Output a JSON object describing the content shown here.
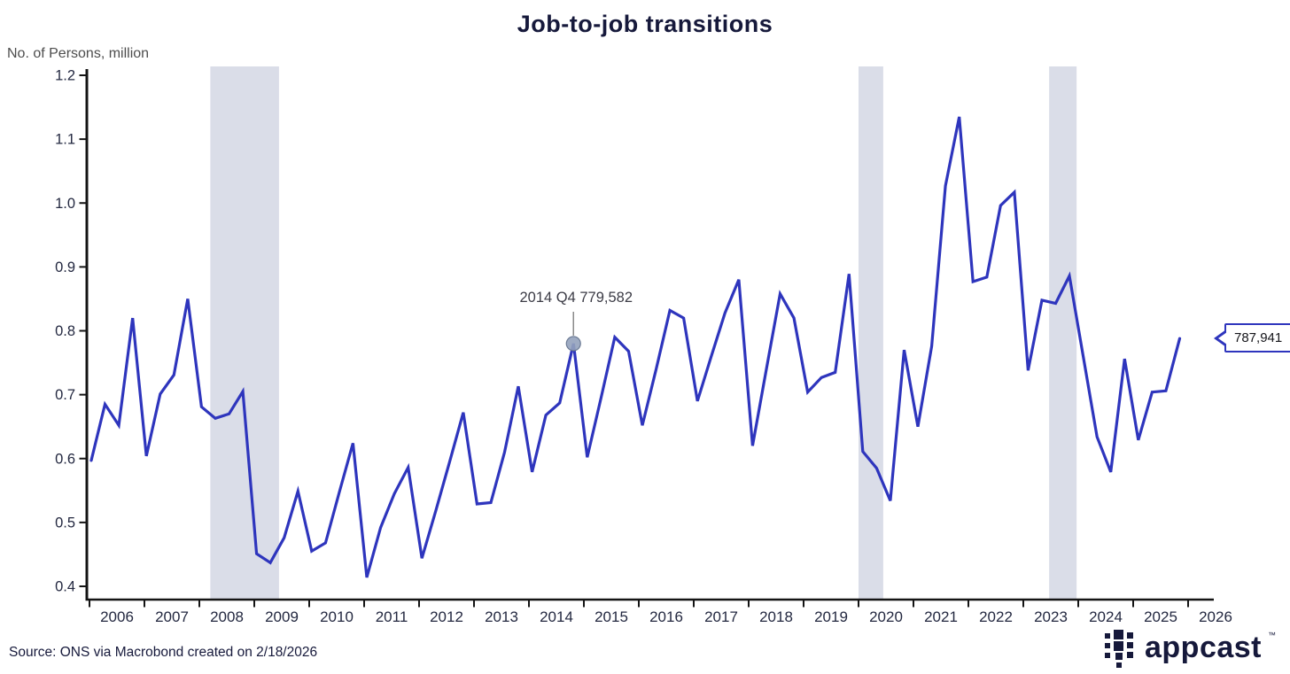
{
  "title": "Job-to-job transitions",
  "y_axis_title": "No. of Persons, million",
  "annotation": {
    "label": "2014 Q4 779,582"
  },
  "callout": {
    "label": "787,941"
  },
  "footer": {
    "source": "Source: ONS via Macrobond created on 2/18/2026"
  },
  "logo": {
    "wordmark": "appcast",
    "trademark": "™"
  },
  "colors": {
    "line": "#2E35BD",
    "band": "#DADDE8",
    "dark": "#16193B",
    "gray": "#4D4D4D",
    "axis": "#141414",
    "tick_text": "#232840",
    "marker_fill": "#93A2BC",
    "marker_stroke": "#6B7A94",
    "leader": "#8A8A8A"
  },
  "chart_data": {
    "type": "line",
    "title": "Job-to-job transitions",
    "ylabel": "No. of Persons, million",
    "xlabel": "",
    "grid": false,
    "legend": "none",
    "ylim": [
      0.4,
      1.2
    ],
    "y_ticks": [
      0.4,
      0.5,
      0.6,
      0.7,
      0.8,
      0.9,
      1.0,
      1.1,
      1.2
    ],
    "y_tick_labels": [
      "0.4",
      "0.5",
      "0.6",
      "0.7",
      "0.8",
      "0.9",
      "1.0",
      "1.1",
      "1.2"
    ],
    "x_tick_years": [
      2006,
      2007,
      2008,
      2009,
      2010,
      2011,
      2012,
      2013,
      2014,
      2015,
      2016,
      2017,
      2018,
      2019,
      2020,
      2021,
      2022,
      2023,
      2024,
      2025,
      2026
    ],
    "series": [
      {
        "name": "Job-to-job transitions",
        "start": "2006 Q1",
        "frequency": "quarterly",
        "values": [
          0.597,
          0.685,
          0.652,
          0.82,
          0.604,
          0.701,
          0.731,
          0.85,
          0.681,
          0.663,
          0.67,
          0.705,
          0.451,
          0.437,
          0.476,
          0.549,
          0.455,
          0.468,
          0.547,
          0.624,
          0.414,
          0.492,
          0.545,
          0.586,
          0.444,
          0.518,
          0.594,
          0.672,
          0.529,
          0.531,
          0.61,
          0.713,
          0.579,
          0.668,
          0.687,
          0.78,
          0.602,
          0.695,
          0.79,
          0.768,
          0.652,
          0.74,
          0.832,
          0.82,
          0.69,
          0.76,
          0.828,
          0.88,
          0.62,
          0.74,
          0.858,
          0.82,
          0.704,
          0.727,
          0.735,
          0.889,
          0.611,
          0.585,
          0.534,
          0.77,
          0.65,
          0.776,
          1.027,
          1.135,
          0.877,
          0.884,
          0.996,
          1.017,
          0.738,
          0.848,
          0.843,
          0.886,
          0.76,
          0.634,
          0.579,
          0.756,
          0.629,
          0.704,
          0.706,
          0.788
        ]
      }
    ],
    "recession_bands": [
      {
        "start_year": 2008.2,
        "end_year": 2009.45
      },
      {
        "start_year": 2020.0,
        "end_year": 2020.45
      },
      {
        "start_year": 2023.47,
        "end_year": 2023.97
      }
    ],
    "annotated_point": {
      "series_index": 35,
      "quarter": "2014 Q4",
      "value_persons": 779582,
      "value_million": 0.78
    },
    "latest_point": {
      "series_index": 79,
      "value_persons": 787941,
      "value_million": 0.788
    }
  }
}
